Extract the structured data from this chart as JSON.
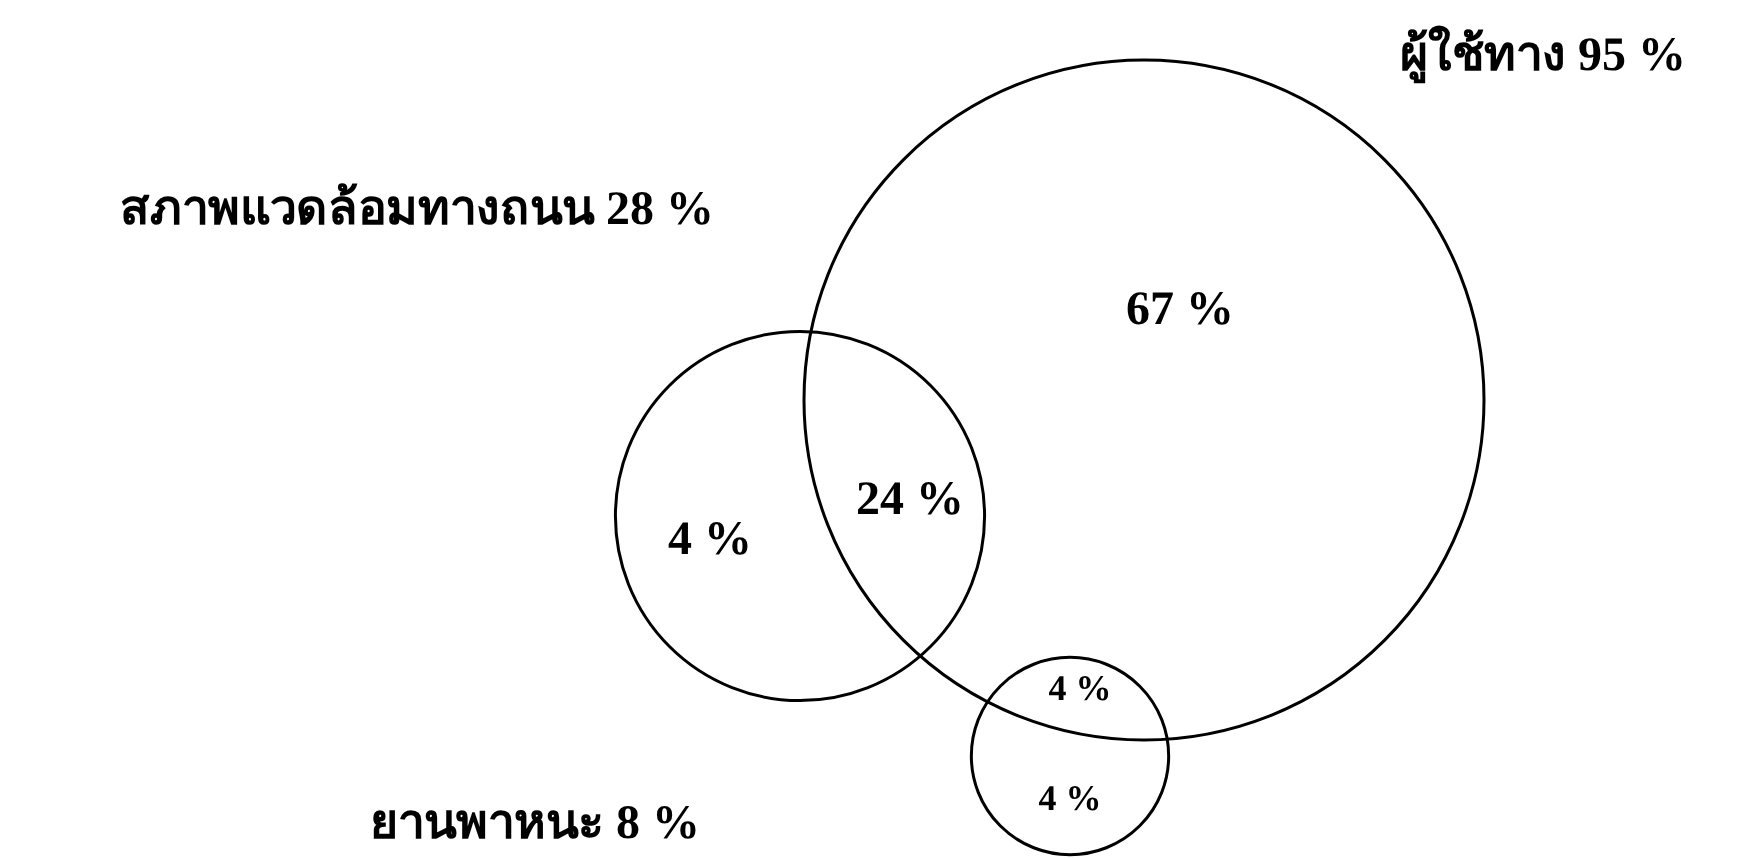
{
  "chart_data": {
    "type": "other",
    "categories": [
      "ผู้ใช้ทาง",
      "สภาพแวดล้อมทางถนน",
      "ยานพาหนะ"
    ],
    "values": [
      95,
      28,
      8
    ],
    "value_labels": [
      "95 %",
      "28 %",
      "8 %"
    ],
    "annotations": [
      "67 %",
      "24 %",
      "4 %",
      "4 %",
      "4 %"
    ]
  }
}
